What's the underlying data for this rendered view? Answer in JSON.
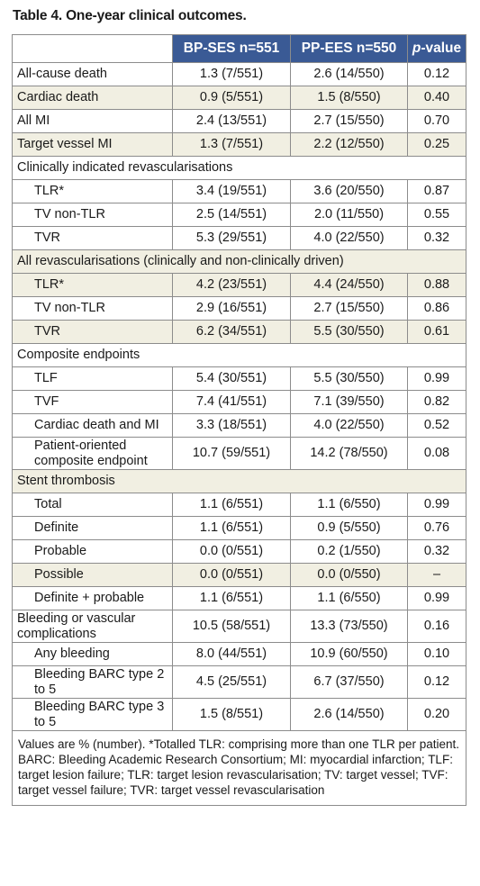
{
  "title": "Table 4. One-year clinical outcomes.",
  "headers": [
    "",
    "BP-SES n=551",
    "PP-EES n=550"
  ],
  "pvalue_header": {
    "italic": "p",
    "rest": "-value"
  },
  "rows": [
    {
      "label": "All-cause death",
      "bp": "1.3 (7/551)",
      "pp": "2.6 (14/550)",
      "p": "0.12"
    },
    {
      "label": "Cardiac death",
      "bp": "0.9 (5/551)",
      "pp": "1.5 (8/550)",
      "p": "0.40"
    },
    {
      "label": "All MI",
      "bp": "2.4 (13/551)",
      "pp": "2.7 (15/550)",
      "p": "0.70"
    },
    {
      "label": "Target vessel MI",
      "bp": "1.3 (7/551)",
      "pp": "2.2 (12/550)",
      "p": "0.25"
    },
    {
      "section": "Clinically indicated revascularisations"
    },
    {
      "label": "TLR*",
      "bp": "3.4 (19/551)",
      "pp": "3.6 (20/550)",
      "p": "0.87"
    },
    {
      "label": "TV non-TLR",
      "bp": "2.5 (14/551)",
      "pp": "2.0 (11/550)",
      "p": "0.55"
    },
    {
      "label": "TVR",
      "bp": "5.3 (29/551)",
      "pp": "4.0 (22/550)",
      "p": "0.32"
    },
    {
      "section": "All revascularisations (clinically and non-clinically driven)"
    },
    {
      "label": "TLR*",
      "bp": "4.2 (23/551)",
      "pp": "4.4 (24/550)",
      "p": "0.88"
    },
    {
      "label": "TV non-TLR",
      "bp": "2.9 (16/551)",
      "pp": "2.7 (15/550)",
      "p": "0.86"
    },
    {
      "label": "TVR",
      "bp": "6.2 (34/551)",
      "pp": "5.5 (30/550)",
      "p": "0.61"
    },
    {
      "section": "Composite endpoints"
    },
    {
      "label": "TLF",
      "bp": "5.4 (30/551)",
      "pp": "5.5 (30/550)",
      "p": "0.99"
    },
    {
      "label": "TVF",
      "bp": "7.4 (41/551)",
      "pp": "7.1 (39/550)",
      "p": "0.82"
    },
    {
      "label": "Cardiac death and MI",
      "bp": "3.3 (18/551)",
      "pp": "4.0 (22/550)",
      "p": "0.52"
    },
    {
      "label": "Patient-oriented composite endpoint",
      "bp": "10.7 (59/551)",
      "pp": "14.2 (78/550)",
      "p": "0.08"
    },
    {
      "section": "Stent thrombosis"
    },
    {
      "label": "Total",
      "bp": "1.1 (6/551)",
      "pp": "1.1 (6/550)",
      "p": "0.99"
    },
    {
      "label": "Definite",
      "bp": "1.1 (6/551)",
      "pp": "0.9 (5/550)",
      "p": "0.76"
    },
    {
      "label": "Probable",
      "bp": "0.0 (0/551)",
      "pp": "0.2 (1/550)",
      "p": "0.32"
    },
    {
      "label": "Possible",
      "bp": "0.0 (0/551)",
      "pp": "0.0 (0/550)",
      "p": "–"
    },
    {
      "label": "Definite + probable",
      "bp": "1.1 (6/551)",
      "pp": "1.1 (6/550)",
      "p": "0.99"
    },
    {
      "label": "Bleeding or vascular complications",
      "bp": "10.5 (58/551)",
      "pp": "13.3 (73/550)",
      "p": "0.16"
    },
    {
      "label": "Any bleeding",
      "bp": "8.0 (44/551)",
      "pp": "10.9 (60/550)",
      "p": "0.10"
    },
    {
      "label": "Bleeding BARC type 2 to 5",
      "bp": "4.5 (25/551)",
      "pp": "6.7 (37/550)",
      "p": "0.12"
    },
    {
      "label": "Bleeding BARC type 3 to 5",
      "bp": "1.5 (8/551)",
      "pp": "2.6 (14/550)",
      "p": "0.20"
    }
  ],
  "footnote": "Values are % (number). *Totalled TLR: comprising more than one TLR per patient. BARC: Bleeding Academic Research Consortium; MI: myocardial infarction; TLF: target lesion failure; TLR: target lesion revascularisation; TV: target vessel; TVF: target vessel failure; TVR: target vessel revascularisation"
}
